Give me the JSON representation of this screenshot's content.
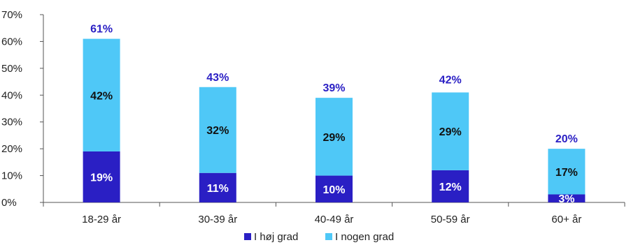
{
  "chart_data": {
    "type": "bar",
    "stacked": true,
    "categories": [
      "18-29 år",
      "30-39 år",
      "40-49 år",
      "50-59 år",
      "60+ år"
    ],
    "series": [
      {
        "name": "I høj grad",
        "values": [
          19,
          11,
          10,
          12,
          3
        ],
        "labels": [
          "19%",
          "11%",
          "10%",
          "12%",
          "3%"
        ],
        "color": "#2a1fc4",
        "label_color": "#ffffff"
      },
      {
        "name": "I nogen grad",
        "values": [
          42,
          32,
          29,
          29,
          17
        ],
        "labels": [
          "42%",
          "32%",
          "29%",
          "29%",
          "17%"
        ],
        "color": "#4fc8f7",
        "label_color": "#111111"
      }
    ],
    "totals": [
      61,
      43,
      39,
      42,
      20
    ],
    "total_labels": [
      "61%",
      "43%",
      "39%",
      "42%",
      "20%"
    ],
    "total_color": "#2a1fc4",
    "ylim": [
      0,
      70
    ],
    "yticks": [
      0,
      10,
      20,
      30,
      40,
      50,
      60,
      70
    ],
    "ytick_labels": [
      "0%",
      "10%",
      "20%",
      "30%",
      "40%",
      "50%",
      "60%",
      "70%"
    ],
    "grid": false,
    "legend": "bottom",
    "title": "",
    "xlabel": "",
    "ylabel": ""
  }
}
